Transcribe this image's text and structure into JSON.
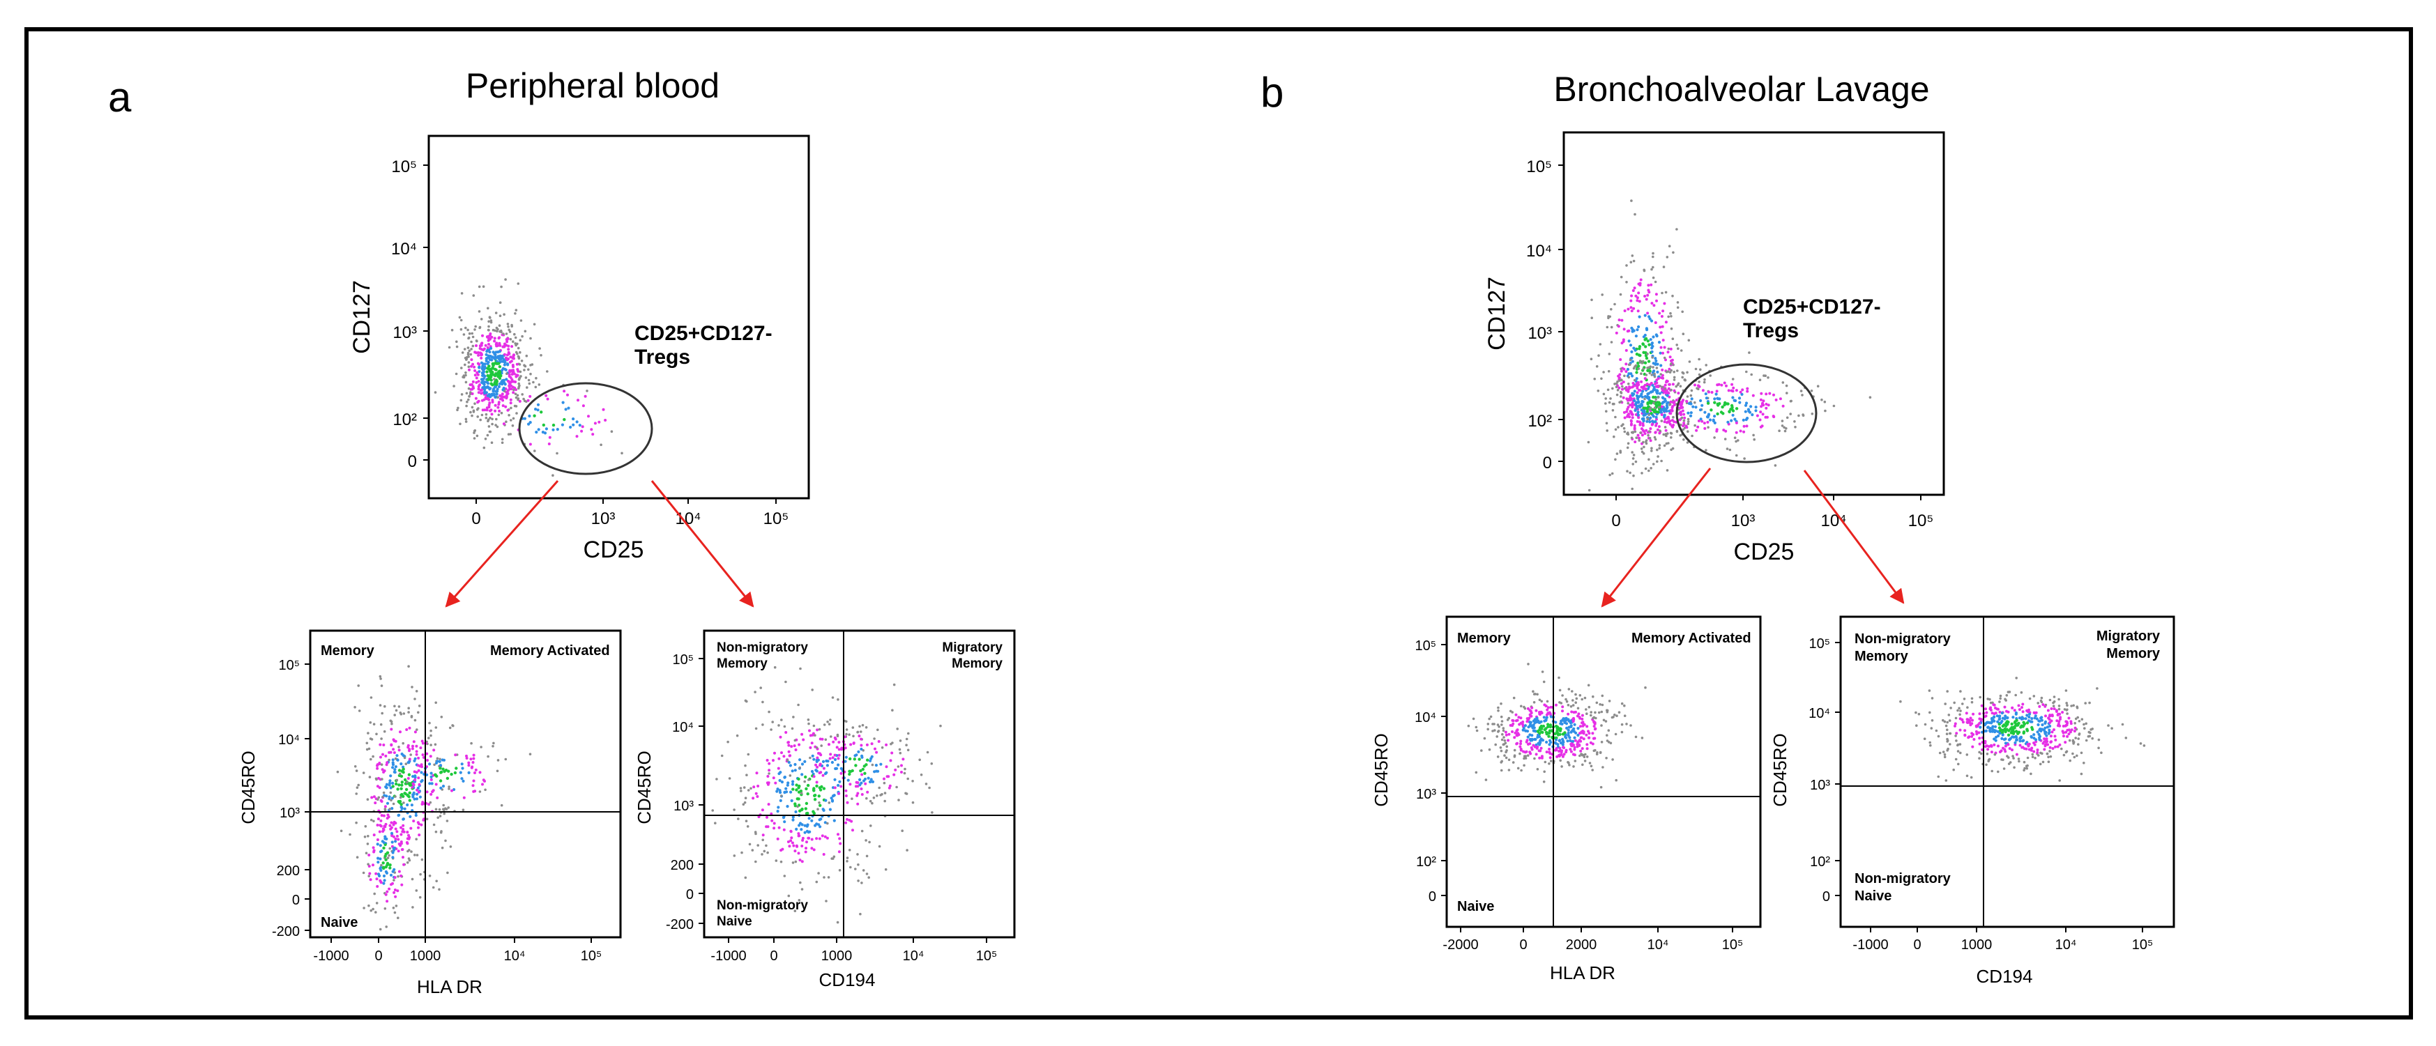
{
  "figure": {
    "panel_a": {
      "letter": "a",
      "title": "Peripheral blood",
      "main_plot": {
        "xlabel": "CD25",
        "ylabel": "CD127",
        "x_ticks": [
          "0",
          "10³",
          "10⁴",
          "10⁵"
        ],
        "y_ticks": [
          "0",
          "10²",
          "10³",
          "10⁴",
          "10⁵"
        ],
        "gate_label_line1": "CD25+CD127-",
        "gate_label_line2": "Tregs"
      },
      "sub_left": {
        "xlabel": "HLA DR",
        "ylabel": "CD45RO",
        "x_ticks": [
          "-1000",
          "0",
          "1000",
          "10⁴",
          "10⁵"
        ],
        "y_ticks": [
          "-200",
          "0",
          "200",
          "10³",
          "10⁴",
          "10⁵"
        ],
        "q_tl": [
          "Memory"
        ],
        "q_tr": [
          "Memory Activated"
        ],
        "q_bl": [
          "Naive"
        ],
        "q_br": []
      },
      "sub_right": {
        "xlabel": "CD194",
        "ylabel": "CD45RO",
        "x_ticks": [
          "-1000",
          "0",
          "1000",
          "10⁴",
          "10⁵"
        ],
        "y_ticks": [
          "-200",
          "0",
          "200",
          "10³",
          "10⁴",
          "10⁵"
        ],
        "q_tl": [
          "Non-migratory",
          "Memory"
        ],
        "q_tr": [
          "Migratory",
          "Memory"
        ],
        "q_bl": [
          "Non-migratory",
          "Naive"
        ],
        "q_br": []
      }
    },
    "panel_b": {
      "letter": "b",
      "title": "Bronchoalveolar Lavage",
      "main_plot": {
        "xlabel": "CD25",
        "ylabel": "CD127",
        "x_ticks": [
          "0",
          "10³",
          "10⁴",
          "10⁵"
        ],
        "y_ticks": [
          "0",
          "10²",
          "10³",
          "10⁴",
          "10⁵"
        ],
        "gate_label_line1": "CD25+CD127-",
        "gate_label_line2": "Tregs"
      },
      "sub_left": {
        "xlabel": "HLA DR",
        "ylabel": "CD45RO",
        "x_ticks": [
          "-2000",
          "0",
          "2000",
          "10⁴",
          "10⁵"
        ],
        "y_ticks": [
          "0",
          "10²",
          "10³",
          "10⁴",
          "10⁵"
        ],
        "q_tl": [
          "Memory"
        ],
        "q_tr": [
          "Memory Activated"
        ],
        "q_bl": [
          "Naive"
        ],
        "q_br": []
      },
      "sub_right": {
        "xlabel": "CD194",
        "ylabel": "CD45RO",
        "x_ticks": [
          "-1000",
          "0",
          "1000",
          "10⁴",
          "10⁵"
        ],
        "y_ticks": [
          "0",
          "10²",
          "10³",
          "10⁴",
          "10⁵"
        ],
        "q_tl": [
          "Non-migratory",
          "Memory"
        ],
        "q_tr": [
          "Migratory",
          "Memory"
        ],
        "q_bl": [
          "Non-migratory",
          "Naive"
        ],
        "q_br": []
      }
    }
  },
  "chart_data": [
    {
      "type": "scatter",
      "panel": "a",
      "title": "Peripheral blood",
      "xlabel": "CD25",
      "ylabel": "CD127",
      "x_ticks": [
        "0",
        "10³",
        "10⁴",
        "10⁵"
      ],
      "y_ticks": [
        "0",
        "10²",
        "10³",
        "10⁴",
        "10⁵"
      ],
      "clusters": [
        {
          "x": 150,
          "y": 600,
          "spread": "tight",
          "density": "high"
        },
        {
          "x": 500,
          "y": 100,
          "spread": "diffuse",
          "density": "low"
        }
      ],
      "gate": {
        "shape": "ellipse",
        "label": "CD25+CD127- Tregs",
        "center": {
          "x": 700,
          "y": 80
        }
      }
    },
    {
      "type": "scatter",
      "panel": "b",
      "title": "Bronchoalveolar Lavage",
      "xlabel": "CD25",
      "ylabel": "CD127",
      "x_ticks": [
        "0",
        "10³",
        "10⁴",
        "10⁵"
      ],
      "y_ticks": [
        "0",
        "10²",
        "10³",
        "10⁴",
        "10⁵"
      ],
      "clusters": [
        {
          "x": 100,
          "y": 700,
          "spread": "diffuse",
          "density": "medium"
        },
        {
          "x": 150,
          "y": 100,
          "spread": "tight",
          "density": "high"
        },
        {
          "x": 900,
          "y": 100,
          "spread": "diffuse",
          "density": "medium"
        }
      ],
      "gate": {
        "shape": "ellipse",
        "label": "CD25+CD127- Tregs",
        "center": {
          "x": 1000,
          "y": 100
        }
      }
    },
    {
      "type": "scatter",
      "panel": "a",
      "xlabel": "HLA DR",
      "ylabel": "CD45RO",
      "quadrants": {
        "top_left": "Memory",
        "top_right": "Memory Activated",
        "bottom_left": "Naive"
      },
      "x_ticks": [
        "-1000",
        "0",
        "1000",
        "10⁴",
        "10⁵"
      ],
      "y_ticks": [
        "-200",
        "0",
        "200",
        "10³",
        "10⁴",
        "10⁵"
      ]
    },
    {
      "type": "scatter",
      "panel": "a",
      "xlabel": "CD194",
      "ylabel": "CD45RO",
      "quadrants": {
        "top_left": "Non-migratory Memory",
        "top_right": "Migratory Memory",
        "bottom_left": "Non-migratory Naive"
      },
      "x_ticks": [
        "-1000",
        "0",
        "1000",
        "10⁴",
        "10⁵"
      ],
      "y_ticks": [
        "-200",
        "0",
        "200",
        "10³",
        "10⁴",
        "10⁵"
      ]
    },
    {
      "type": "scatter",
      "panel": "b",
      "xlabel": "HLA DR",
      "ylabel": "CD45RO",
      "quadrants": {
        "top_left": "Memory",
        "top_right": "Memory Activated",
        "bottom_left": "Naive"
      },
      "x_ticks": [
        "-2000",
        "0",
        "2000",
        "10⁴",
        "10⁵"
      ],
      "y_ticks": [
        "0",
        "10²",
        "10³",
        "10⁴",
        "10⁵"
      ]
    },
    {
      "type": "scatter",
      "panel": "b",
      "xlabel": "CD194",
      "ylabel": "CD45RO",
      "quadrants": {
        "top_left": "Non-migratory Memory",
        "top_right": "Migratory Memory",
        "bottom_left": "Non-migratory Naive"
      },
      "x_ticks": [
        "-1000",
        "0",
        "1000",
        "10⁴",
        "10⁵"
      ],
      "y_ticks": [
        "0",
        "10²",
        "10³",
        "10⁴",
        "10⁵"
      ]
    }
  ],
  "colors": {
    "frame": "#000000",
    "arrow": "#e8231f",
    "dot_low": "#8c8c8c",
    "dot_mid": "#e62fe6",
    "dot_high": "#2f8fe6",
    "dot_peak": "#1ec83c"
  }
}
